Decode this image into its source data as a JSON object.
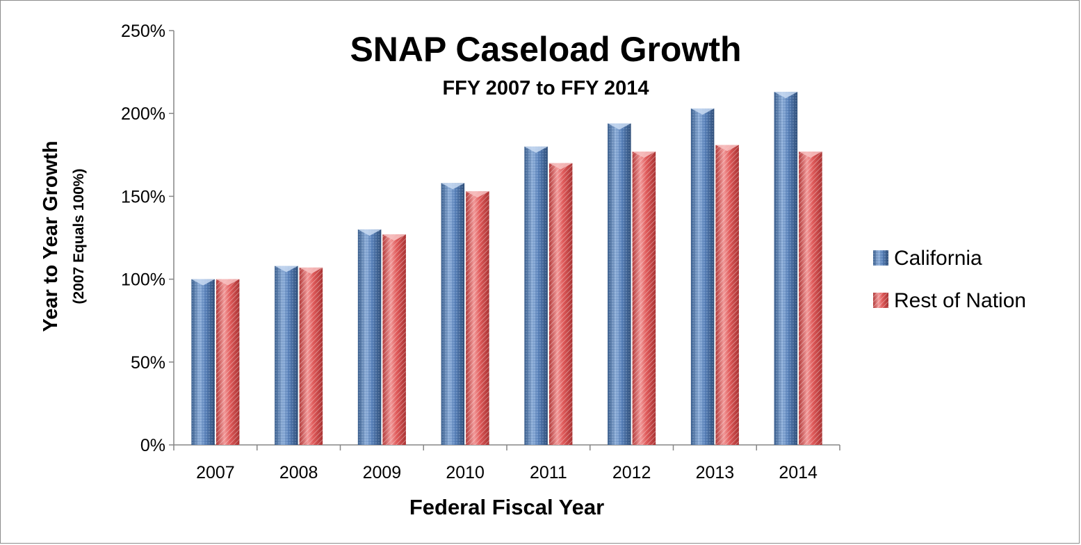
{
  "chart_data": {
    "type": "bar",
    "title": "SNAP Caseload Growth",
    "subtitle": "FFY 2007 to FFY 2014",
    "xlabel": "Federal Fiscal Year",
    "ylabel": "Year to Year Growth",
    "ylabel_sub": "(2007 Equals 100%)",
    "categories": [
      "2007",
      "2008",
      "2009",
      "2010",
      "2011",
      "2012",
      "2013",
      "2014"
    ],
    "series": [
      {
        "name": "California",
        "color": "#4f81bd",
        "values": [
          100,
          108,
          130,
          158,
          180,
          194,
          203,
          213
        ]
      },
      {
        "name": "Rest of Nation",
        "color": "#e05a5a",
        "values": [
          100,
          107,
          127,
          153,
          170,
          177,
          181,
          177
        ]
      }
    ],
    "ylim": [
      0,
      250
    ],
    "yticks": [
      0,
      50,
      100,
      150,
      200,
      250
    ],
    "ytick_labels": [
      "0%",
      "50%",
      "100%",
      "150%",
      "200%",
      "250%"
    ],
    "grid": false,
    "legend": "right"
  }
}
